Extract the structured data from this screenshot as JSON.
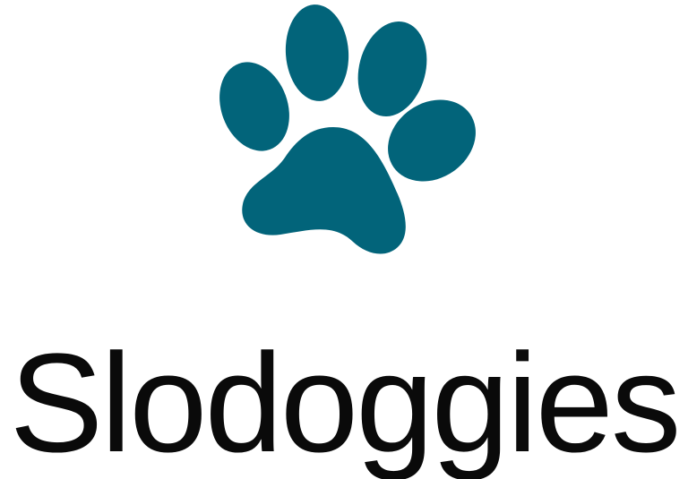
{
  "brand": {
    "name": "Slodoggies",
    "icon": "paw-print-icon",
    "icon_color": "#02647a",
    "text_color": "#0a0a0a",
    "background": "#ffffff"
  }
}
